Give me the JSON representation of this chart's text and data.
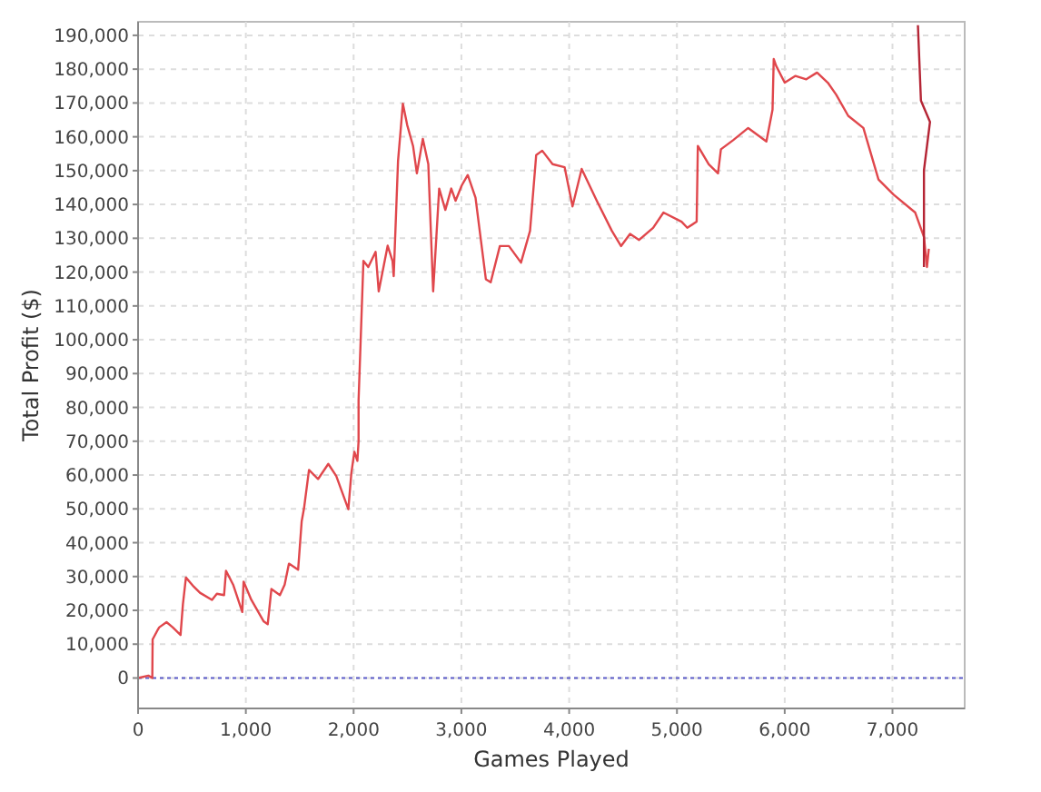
{
  "chart_data": {
    "type": "line",
    "xlabel": "Games Played",
    "ylabel": "Total Profit ($)",
    "xlim": [
      0,
      7670
    ],
    "ylim": [
      -9000,
      194000
    ],
    "xticks": [
      {
        "value": 0,
        "label": "0"
      },
      {
        "value": 1000,
        "label": "1,000"
      },
      {
        "value": 2000,
        "label": "2,000"
      },
      {
        "value": 3000,
        "label": "3,000"
      },
      {
        "value": 4000,
        "label": "4,000"
      },
      {
        "value": 5000,
        "label": "5,000"
      },
      {
        "value": 6000,
        "label": "6,000"
      },
      {
        "value": 7000,
        "label": "7,000"
      }
    ],
    "yticks": [
      {
        "value": 0,
        "label": "0"
      },
      {
        "value": 10000,
        "label": "10,000"
      },
      {
        "value": 20000,
        "label": "20,000"
      },
      {
        "value": 30000,
        "label": "30,000"
      },
      {
        "value": 40000,
        "label": "40,000"
      },
      {
        "value": 50000,
        "label": "50,000"
      },
      {
        "value": 60000,
        "label": "60,000"
      },
      {
        "value": 70000,
        "label": "70,000"
      },
      {
        "value": 80000,
        "label": "80,000"
      },
      {
        "value": 90000,
        "label": "90,000"
      },
      {
        "value": 100000,
        "label": "100,000"
      },
      {
        "value": 110000,
        "label": "110,000"
      },
      {
        "value": 120000,
        "label": "120,000"
      },
      {
        "value": 130000,
        "label": "130,000"
      },
      {
        "value": 140000,
        "label": "140,000"
      },
      {
        "value": 150000,
        "label": "150,000"
      },
      {
        "value": 160000,
        "label": "160,000"
      },
      {
        "value": 170000,
        "label": "170,000"
      },
      {
        "value": 180000,
        "label": "180,000"
      },
      {
        "value": 190000,
        "label": "190,000"
      }
    ],
    "grid": true,
    "marker": "none",
    "line_style": "solid",
    "ref_lines": [
      {
        "axis": "y",
        "value": 0,
        "color": "#5a5ac8",
        "line_style": "dotted"
      }
    ],
    "series": [
      {
        "color": "#e0474c",
        "x": [
          0,
          96,
          132,
          135,
          180,
          197,
          264,
          321,
          394,
          416,
          444,
          517,
          574,
          686,
          731,
          798,
          816,
          882,
          967,
          979,
          1051,
          1164,
          1203,
          1237,
          1316,
          1360,
          1400,
          1485,
          1518,
          1540,
          1586,
          1670,
          1765,
          1839,
          1951,
          1979,
          2007,
          2035,
          2046,
          2046,
          2091,
          2136,
          2204,
          2233,
          2316,
          2361,
          2372,
          2412,
          2457,
          2497,
          2552,
          2587,
          2642,
          2693,
          2738,
          2794,
          2851,
          2906,
          2946,
          3003,
          3059,
          3131,
          3227,
          3272,
          3357,
          3441,
          3553,
          3637,
          3694,
          3750,
          3846,
          3958,
          4015,
          4031,
          4116,
          4256,
          4396,
          4481,
          4565,
          4649,
          4779,
          4875,
          5043,
          5096,
          5183,
          5194,
          5295,
          5381,
          5408,
          5521,
          5661,
          5830,
          5887,
          5898,
          5920,
          6000,
          6100,
          6200,
          6300,
          6400,
          6477,
          6589,
          6730,
          6870,
          7011,
          7211,
          7292,
          7320,
          7337
        ],
        "values": [
          0,
          700,
          0,
          11400,
          14100,
          15000,
          16500,
          15000,
          12700,
          21800,
          29700,
          27000,
          25200,
          23100,
          24900,
          24500,
          31700,
          27600,
          19500,
          28500,
          23100,
          16800,
          15900,
          26300,
          24500,
          27600,
          33800,
          32000,
          46300,
          50200,
          61500,
          58800,
          63300,
          59700,
          49900,
          60600,
          66900,
          64200,
          70000,
          82100,
          123300,
          121500,
          126000,
          114300,
          127800,
          123300,
          118800,
          152800,
          169800,
          163500,
          157200,
          149200,
          159400,
          151900,
          114300,
          144700,
          138400,
          144700,
          141100,
          145600,
          148700,
          142000,
          117900,
          117000,
          127700,
          127700,
          122800,
          132200,
          154600,
          155900,
          151900,
          151000,
          142000,
          139400,
          150500,
          141100,
          132200,
          127700,
          131300,
          129500,
          133100,
          137600,
          134900,
          133100,
          134900,
          157300,
          151900,
          149200,
          156300,
          159000,
          162600,
          158600,
          168000,
          183000,
          181000,
          176000,
          178000,
          177000,
          179000,
          176000,
          172500,
          166200,
          162600,
          147400,
          142900,
          137600,
          130400,
          121500,
          126900
        ]
      },
      {
        "color": "#b52535",
        "x": [
          7292,
          7292,
          7348,
          7264,
          7236
        ],
        "values": [
          121500,
          150100,
          164400,
          170700,
          193000
        ]
      }
    ]
  }
}
